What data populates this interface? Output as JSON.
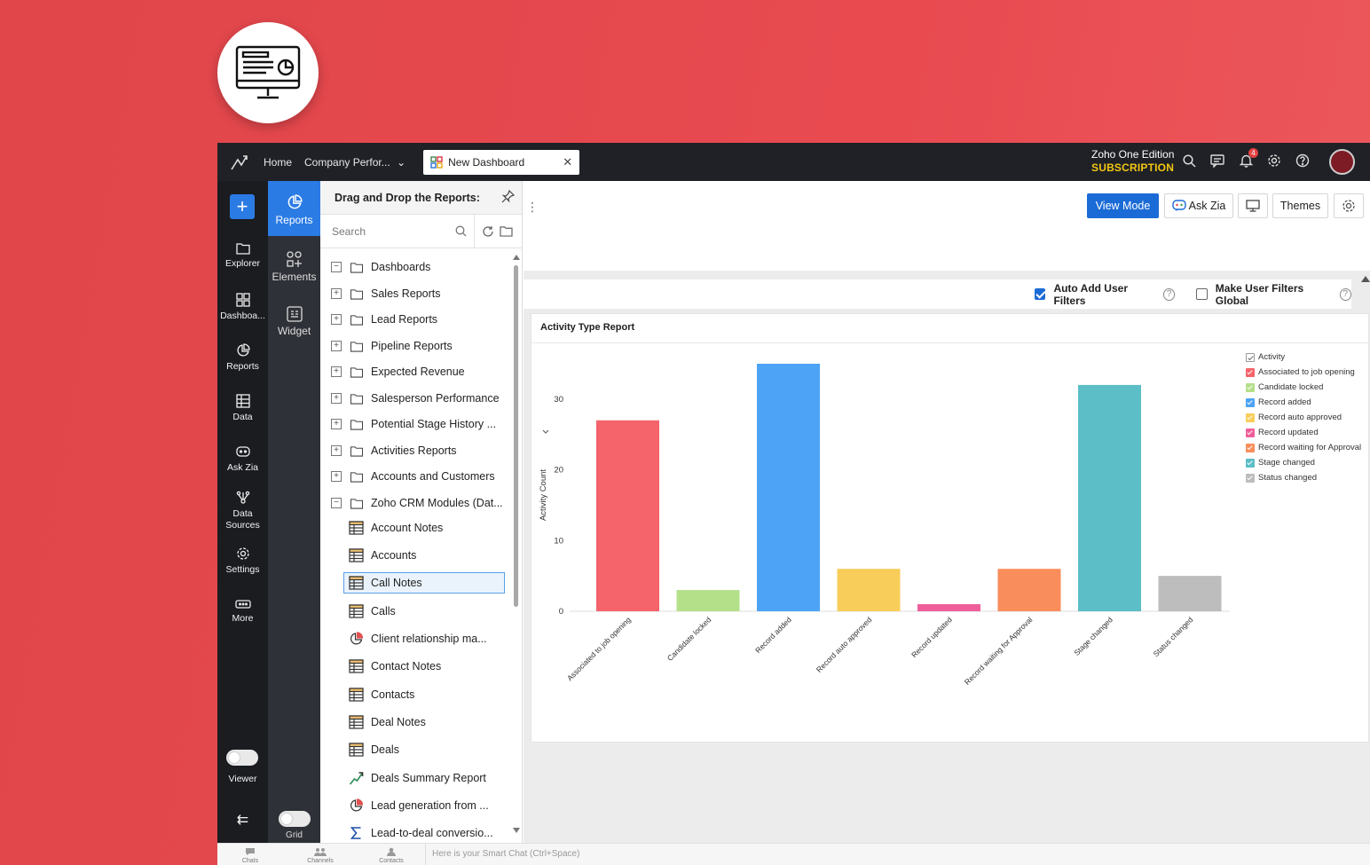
{
  "topbar": {
    "home": "Home",
    "workspace": "Company Perfor...",
    "active_tab": "New Dashboard",
    "edition_line1": "Zoho One Edition",
    "edition_line2": "SUBSCRIPTION",
    "notifications": "4"
  },
  "rail": {
    "items": [
      "Explorer",
      "Dashboa...",
      "Reports",
      "Data",
      "Ask Zia",
      "Data Sources",
      "Settings",
      "More"
    ],
    "viewer": "Viewer"
  },
  "panel2": {
    "reports": "Reports",
    "elements": "Elements",
    "widget": "Widget",
    "grid": "Grid"
  },
  "drawer": {
    "title": "Drag and Drop the Reports:",
    "search_placeholder": "Search",
    "folders": [
      {
        "label": "Dashboards",
        "exp": "−"
      },
      {
        "label": "Sales Reports",
        "exp": "+"
      },
      {
        "label": "Lead Reports",
        "exp": "+"
      },
      {
        "label": "Pipeline Reports",
        "exp": "+"
      },
      {
        "label": "Expected Revenue",
        "exp": "+"
      },
      {
        "label": "Salesperson Performance",
        "exp": "+"
      },
      {
        "label": "Potential Stage History ...",
        "exp": "+"
      },
      {
        "label": "Activities Reports",
        "exp": "+"
      },
      {
        "label": "Accounts and Customers",
        "exp": "+"
      },
      {
        "label": "Zoho CRM Modules (Dat...",
        "exp": "−"
      }
    ],
    "children": [
      {
        "label": "Account Notes",
        "icon": "table"
      },
      {
        "label": "Accounts",
        "icon": "table"
      },
      {
        "label": "Call Notes",
        "icon": "table"
      },
      {
        "label": "Calls",
        "icon": "table"
      },
      {
        "label": "Client relationship ma...",
        "icon": "pie"
      },
      {
        "label": "Contact Notes",
        "icon": "table"
      },
      {
        "label": "Contacts",
        "icon": "table"
      },
      {
        "label": "Deal Notes",
        "icon": "table"
      },
      {
        "label": "Deals",
        "icon": "table"
      },
      {
        "label": "Deals Summary Report",
        "icon": "line"
      },
      {
        "label": "Lead generation from ...",
        "icon": "pie"
      },
      {
        "label": "Lead-to-deal conversio...",
        "icon": "sigma"
      }
    ]
  },
  "toolbar": {
    "view_mode": "View Mode",
    "ask_zia": "Ask Zia",
    "themes": "Themes"
  },
  "filters": {
    "auto_add": "Auto Add User Filters",
    "make_global": "Make User Filters Global"
  },
  "chart_data": {
    "type": "bar",
    "title": "Activity Type Report",
    "xlabel": "",
    "ylabel": "Activity Count",
    "ylim": [
      0,
      35
    ],
    "yticks": [
      0,
      10,
      20,
      30
    ],
    "categories": [
      "Associated to job opening",
      "Candidate locked",
      "Record added",
      "Record auto approved",
      "Record updated",
      "Record waiting for Approval",
      "Stage changed",
      "Status changed"
    ],
    "values": [
      27,
      3,
      35,
      6,
      1,
      6,
      32,
      5
    ],
    "colors": [
      "#f4646a",
      "#b5e08a",
      "#4da3f5",
      "#f8cd5a",
      "#ef5e9a",
      "#f98e5c",
      "#5cbec6",
      "#bdbdbd"
    ],
    "legend_title": "Activity",
    "legend": [
      "Associated to job opening",
      "Candidate locked",
      "Record added",
      "Record auto approved",
      "Record updated",
      "Record waiting for Approval",
      "Stage changed",
      "Status changed"
    ],
    "grid": false,
    "legend_position": "right"
  },
  "statusbar": {
    "chats": "Chats",
    "channels": "Channels",
    "contacts": "Contacts",
    "smart_chat": "Here is your Smart Chat (Ctrl+Space)"
  }
}
